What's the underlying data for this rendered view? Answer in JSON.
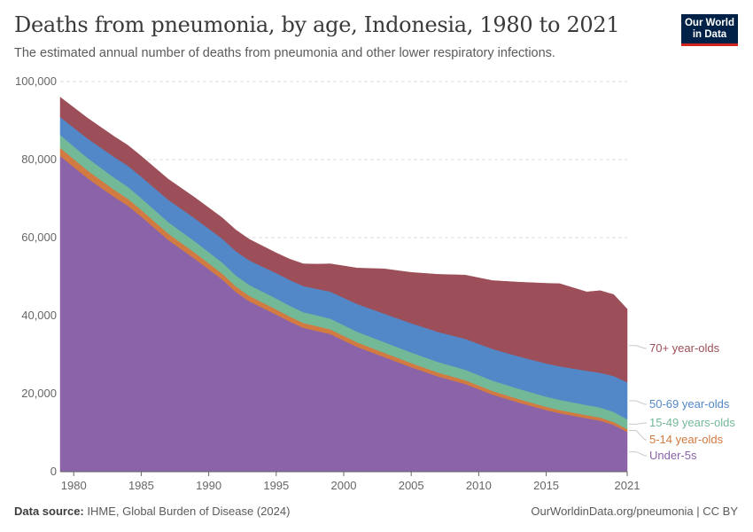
{
  "header": {
    "title": "Deaths from pneumonia, by age, Indonesia, 1980 to 2021",
    "subtitle": "The estimated annual number of deaths from pneumonia and other lower respiratory infections.",
    "logo_line1": "Our World",
    "logo_line2": "in Data"
  },
  "footer": {
    "source_label": "Data source:",
    "source_text": "IHME, Global Burden of Disease (2024)",
    "link": "OurWorldinData.org/pneumonia | CC BY"
  },
  "colors": {
    "under5": "#8b63a8",
    "age5_14": "#d17a41",
    "age15_49": "#73b997",
    "age50_69": "#5287c8",
    "age70plus": "#9c4f58",
    "grid": "#dddddd",
    "axis": "#666666"
  },
  "chart_data": {
    "type": "area",
    "stacked": true,
    "x": [
      1979,
      1981,
      1983,
      1984,
      1985,
      1987,
      1989,
      1991,
      1992,
      1993,
      1995,
      1996,
      1997,
      1998,
      1999,
      2001,
      2003,
      2005,
      2007,
      2009,
      2011,
      2013,
      2015,
      2016,
      2018,
      2019,
      2020,
      2021
    ],
    "x_ticks": [
      1980,
      1985,
      1990,
      1995,
      2000,
      2005,
      2010,
      2015,
      2021
    ],
    "y_ticks": [
      0,
      20000,
      40000,
      60000,
      80000,
      100000
    ],
    "y_tick_labels": [
      "0",
      "20,000",
      "40,000",
      "60,000",
      "80,000",
      "100,000"
    ],
    "xlim": [
      1979,
      2021
    ],
    "ylim": [
      0,
      100000
    ],
    "grid": "horizontal dashed",
    "series": [
      {
        "name": "Under-5s",
        "color": "#8b63a8",
        "values": [
          80900,
          75300,
          70400,
          68200,
          65400,
          59400,
          54500,
          49300,
          46100,
          43700,
          40300,
          38500,
          36900,
          36100,
          35300,
          32000,
          29400,
          26800,
          24400,
          22500,
          19800,
          17700,
          15800,
          15000,
          13700,
          13100,
          12000,
          10200
        ]
      },
      {
        "name": "5-14 year-olds",
        "color": "#d17a41",
        "values": [
          2100,
          1980,
          1860,
          1800,
          1740,
          1650,
          1560,
          1470,
          1420,
          1380,
          1320,
          1290,
          1260,
          1240,
          1210,
          1160,
          1110,
          1060,
          1010,
          970,
          920,
          880,
          840,
          820,
          790,
          780,
          760,
          720
        ]
      },
      {
        "name": "15-49 years-olds",
        "color": "#73b997",
        "values": [
          3300,
          3200,
          3100,
          3050,
          3000,
          2950,
          2900,
          2850,
          2830,
          2810,
          2780,
          2770,
          2760,
          2750,
          2740,
          2730,
          2720,
          2710,
          2700,
          2690,
          2670,
          2650,
          2620,
          2610,
          2600,
          2590,
          2570,
          2520
        ]
      },
      {
        "name": "50-69 year-olds",
        "color": "#5287c8",
        "values": [
          4600,
          5000,
          5300,
          5400,
          5500,
          5700,
          5900,
          6100,
          6200,
          6300,
          6500,
          6600,
          6700,
          6800,
          6900,
          7100,
          7300,
          7500,
          7700,
          7900,
          8100,
          8300,
          8500,
          8600,
          8800,
          8900,
          9200,
          9500
        ]
      },
      {
        "name": "70+ year-olds",
        "color": "#9c4f58",
        "values": [
          5100,
          5220,
          5240,
          5250,
          5260,
          5300,
          5340,
          5380,
          5450,
          5410,
          5200,
          5340,
          5680,
          6310,
          7150,
          9210,
          11470,
          13020,
          14790,
          16340,
          17510,
          19070,
          20540,
          21170,
          20210,
          21030,
          20870,
          18760
        ]
      }
    ],
    "legend_placement": "right, aligned to series end values"
  }
}
